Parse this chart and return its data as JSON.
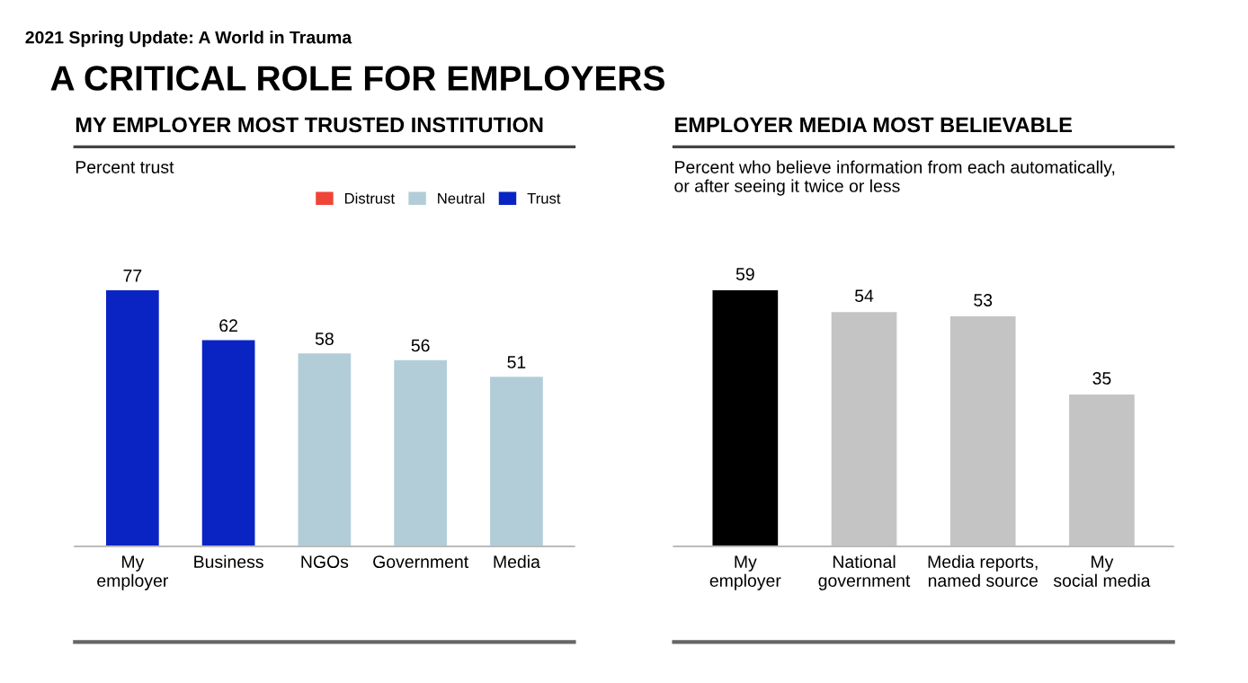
{
  "chart_data": [
    {
      "type": "bar",
      "title": "MY EMPLOYER MOST TRUSTED INSTITUTION",
      "subtitle": "Percent trust",
      "annotations": [
        "2021 Spring Update: A World in Trauma",
        "A CRITICAL ROLE FOR EMPLOYERS"
      ],
      "categories": [
        "My\nemployer",
        "Business",
        "NGOs",
        "Government",
        "Media"
      ],
      "series": [
        {
          "name": "Distrust",
          "color": "#f04438",
          "values": [
            null,
            null,
            null,
            null,
            null
          ]
        },
        {
          "name": "Neutral",
          "color": "#b3cdd8",
          "values": [
            null,
            null,
            58,
            56,
            51
          ]
        },
        {
          "name": "Trust",
          "color": "#0a24c4",
          "values": [
            77,
            62,
            null,
            null,
            null
          ]
        }
      ],
      "data_labels": true,
      "legend": "top right"
    },
    {
      "type": "bar",
      "title": "EMPLOYER MEDIA MOST BELIEVABLE",
      "subtitle": "Percent who believe information from each automatically,\nor after seeing it twice or less",
      "categories": [
        "My\nemployer",
        "National\ngovernment",
        "Media reports,\nnamed source",
        "My\nsocial media"
      ],
      "values": [
        59,
        54,
        53,
        35
      ],
      "colors": [
        "#000000",
        "#c4c4c4",
        "#c4c4c4",
        "#c4c4c4"
      ],
      "data_labels": true
    }
  ]
}
